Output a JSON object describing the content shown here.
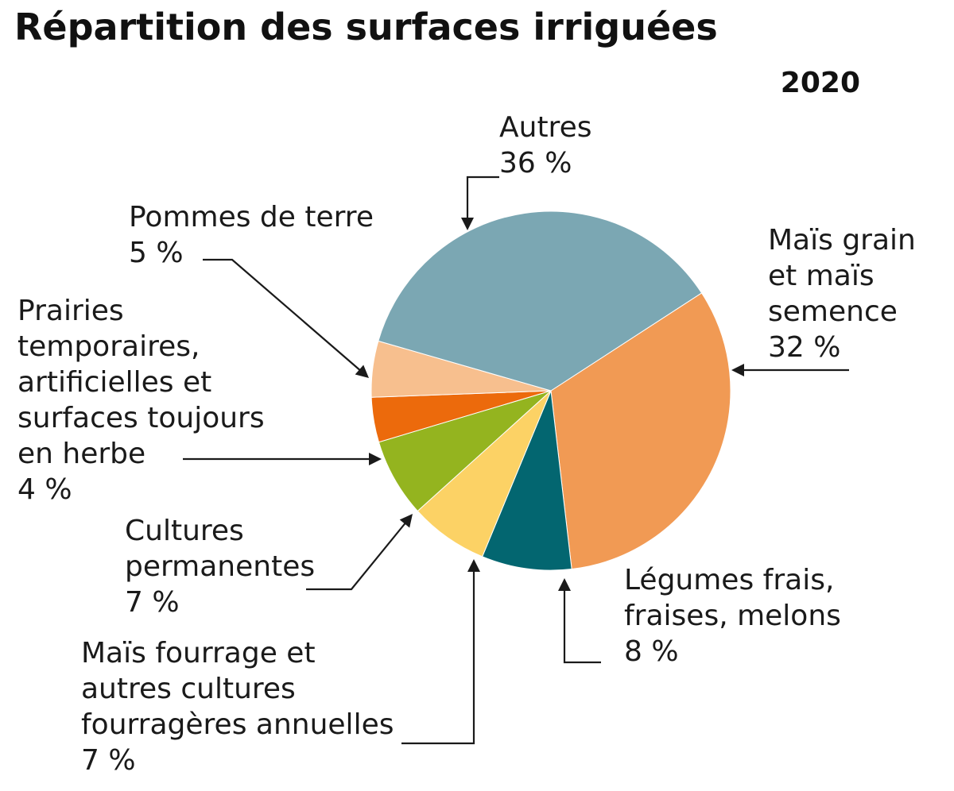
{
  "header": {
    "title": "Répartition des surfaces irriguées",
    "year": "2020"
  },
  "chart_data": {
    "type": "pie",
    "title": "Répartition des surfaces irriguées",
    "subtitle": "2020",
    "unit": "%",
    "slices": [
      {
        "label_lines": [
          "Autres"
        ],
        "value": 36,
        "value_label": "36 %",
        "color": "#7BA7B3"
      },
      {
        "label_lines": [
          "Maïs grain",
          "et maïs",
          "semence"
        ],
        "value": 32,
        "value_label": "32 %",
        "color": "#F19A54"
      },
      {
        "label_lines": [
          "Légumes frais,",
          "fraises, melons"
        ],
        "value": 8,
        "value_label": "8 %",
        "color": "#036670"
      },
      {
        "label_lines": [
          "Maïs fourrage et",
          "autres cultures",
          "fourragères annuelles"
        ],
        "value": 7,
        "value_label": "7 %",
        "color": "#FCD265"
      },
      {
        "label_lines": [
          "Cultures",
          "permanentes"
        ],
        "value": 7,
        "value_label": "7 %",
        "color": "#94B41F"
      },
      {
        "label_lines": [
          "Prairies",
          "temporaires,",
          "artificielles et",
          "surfaces toujours",
          "en herbe"
        ],
        "value": 4,
        "value_label": "4 %",
        "color": "#EC6A0C"
      },
      {
        "label_lines": [
          "Pommes de terre"
        ],
        "value": 5,
        "value_label": "5 %",
        "color": "#F7BF8E"
      }
    ]
  }
}
